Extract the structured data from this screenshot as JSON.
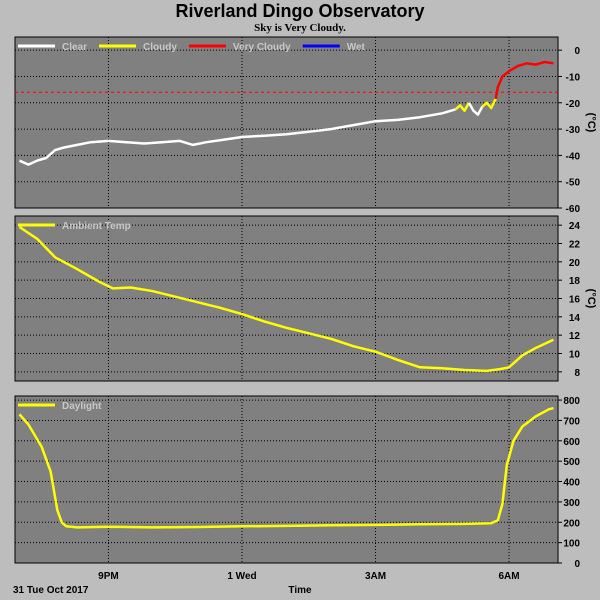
{
  "header": {
    "title": "Riverland Dingo Observatory",
    "subtitle": "Sky is Very Cloudy.",
    "date_label": "31 Tue Oct 2017",
    "x_label": "Time"
  },
  "colors": {
    "plot_bg": "#808080",
    "grid": "#000000",
    "clear": "#ffffff",
    "cloudy": "#ffff00",
    "very_cloudy": "#ff0000",
    "wet": "#0000ff",
    "threshold": "#ff0000"
  },
  "chart_data": [
    {
      "type": "line",
      "name": "sky",
      "unit": "(°C)",
      "ylim": [
        -60,
        5
      ],
      "yticks": [
        0,
        -10,
        -20,
        -30,
        -40,
        -50,
        -60
      ],
      "xlim": [
        18.9,
        31.1
      ],
      "xticks": [
        {
          "x": 21,
          "label": "9PM"
        },
        {
          "x": 24,
          "label": "1 Wed"
        },
        {
          "x": 27,
          "label": "3AM"
        },
        {
          "x": 30,
          "label": "6AM"
        }
      ],
      "vgrid_x": [
        21,
        24,
        27,
        30
      ],
      "threshold": -16,
      "legend": [
        {
          "label": "Clear",
          "color": "#ffffff"
        },
        {
          "label": "Cloudy",
          "color": "#ffff00"
        },
        {
          "label": "Very Cloudy",
          "color": "#ff0000"
        },
        {
          "label": "Wet",
          "color": "#0000ff"
        }
      ],
      "segments": [
        {
          "color": "#ffffff",
          "points": [
            [
              19.0,
              -42
            ],
            [
              19.2,
              -43.5
            ],
            [
              19.4,
              -42
            ],
            [
              19.6,
              -41
            ],
            [
              19.8,
              -38
            ],
            [
              20.0,
              -37
            ],
            [
              20.3,
              -36
            ],
            [
              20.6,
              -35
            ],
            [
              21.0,
              -34.5
            ],
            [
              21.4,
              -35
            ],
            [
              21.8,
              -35.5
            ],
            [
              22.2,
              -35
            ],
            [
              22.6,
              -34.5
            ],
            [
              22.9,
              -36
            ],
            [
              23.2,
              -35
            ],
            [
              23.6,
              -34
            ],
            [
              24.0,
              -33
            ],
            [
              24.5,
              -32.5
            ],
            [
              25.0,
              -32
            ],
            [
              25.5,
              -31
            ],
            [
              26.0,
              -30
            ],
            [
              26.5,
              -28.5
            ],
            [
              27.0,
              -27
            ],
            [
              27.5,
              -26.5
            ],
            [
              28.0,
              -25.5
            ],
            [
              28.5,
              -24
            ],
            [
              28.8,
              -22.5
            ]
          ]
        },
        {
          "color": "#ffff00",
          "points": [
            [
              28.8,
              -22.5
            ],
            [
              28.9,
              -21
            ],
            [
              29.0,
              -23
            ],
            [
              29.1,
              -20
            ]
          ]
        },
        {
          "color": "#ffffff",
          "points": [
            [
              29.1,
              -20
            ],
            [
              29.2,
              -23
            ],
            [
              29.3,
              -24.5
            ],
            [
              29.4,
              -21.5
            ]
          ]
        },
        {
          "color": "#ffff00",
          "points": [
            [
              29.4,
              -21.5
            ],
            [
              29.5,
              -20
            ],
            [
              29.6,
              -22
            ],
            [
              29.7,
              -18.5
            ]
          ]
        },
        {
          "color": "#ff0000",
          "points": [
            [
              29.7,
              -18.5
            ],
            [
              29.75,
              -14
            ],
            [
              29.85,
              -10
            ],
            [
              30.0,
              -8
            ],
            [
              30.2,
              -6
            ],
            [
              30.4,
              -5
            ],
            [
              30.6,
              -5.5
            ],
            [
              30.8,
              -4.5
            ],
            [
              31.0,
              -5
            ]
          ]
        }
      ]
    },
    {
      "type": "line",
      "name": "ambient",
      "unit": "(°C)",
      "ylim": [
        7,
        25
      ],
      "yticks": [
        24,
        22,
        20,
        18,
        16,
        14,
        12,
        10,
        8
      ],
      "xlim": [
        18.9,
        31.1
      ],
      "vgrid_x": [
        21,
        24,
        27,
        30
      ],
      "legend": [
        {
          "label": "Ambient Temp",
          "color": "#ffff00"
        }
      ],
      "series": [
        {
          "name": "Ambient Temp",
          "color": "#ffff00",
          "x": [
            19.0,
            19.4,
            19.8,
            20.3,
            20.8,
            21.1,
            21.5,
            22.0,
            22.5,
            23.0,
            23.5,
            24.0,
            24.5,
            25.0,
            25.5,
            26.0,
            26.5,
            27.0,
            27.5,
            28.0,
            28.5,
            29.0,
            29.5,
            29.8,
            30.0,
            30.3,
            30.6,
            31.0
          ],
          "y": [
            23.8,
            22.5,
            20.5,
            19.2,
            17.8,
            17.1,
            17.2,
            16.8,
            16.2,
            15.6,
            15.0,
            14.3,
            13.5,
            12.8,
            12.2,
            11.6,
            10.8,
            10.2,
            9.3,
            8.5,
            8.4,
            8.2,
            8.1,
            8.3,
            8.5,
            9.8,
            10.6,
            11.5
          ]
        }
      ]
    },
    {
      "type": "line",
      "name": "daylight",
      "ylim": [
        0,
        820
      ],
      "yticks": [
        800,
        700,
        600,
        500,
        400,
        300,
        200,
        100,
        0
      ],
      "xlim": [
        18.9,
        31.1
      ],
      "vgrid_x": [
        21,
        24,
        27,
        30
      ],
      "legend": [
        {
          "label": "Daylight",
          "color": "#ffff00"
        }
      ],
      "series": [
        {
          "name": "Daylight",
          "color": "#ffff00",
          "x": [
            19.0,
            19.2,
            19.5,
            19.7,
            19.85,
            19.95,
            20.05,
            20.3,
            21.0,
            22.0,
            23.0,
            24.0,
            25.0,
            26.0,
            27.0,
            28.0,
            29.0,
            29.6,
            29.75,
            29.85,
            29.95,
            30.1,
            30.3,
            30.6,
            30.9,
            31.0
          ],
          "y": [
            730,
            680,
            570,
            450,
            260,
            200,
            180,
            175,
            178,
            175,
            177,
            180,
            182,
            185,
            187,
            190,
            192,
            195,
            210,
            290,
            480,
            600,
            670,
            720,
            755,
            760
          ]
        }
      ]
    }
  ]
}
